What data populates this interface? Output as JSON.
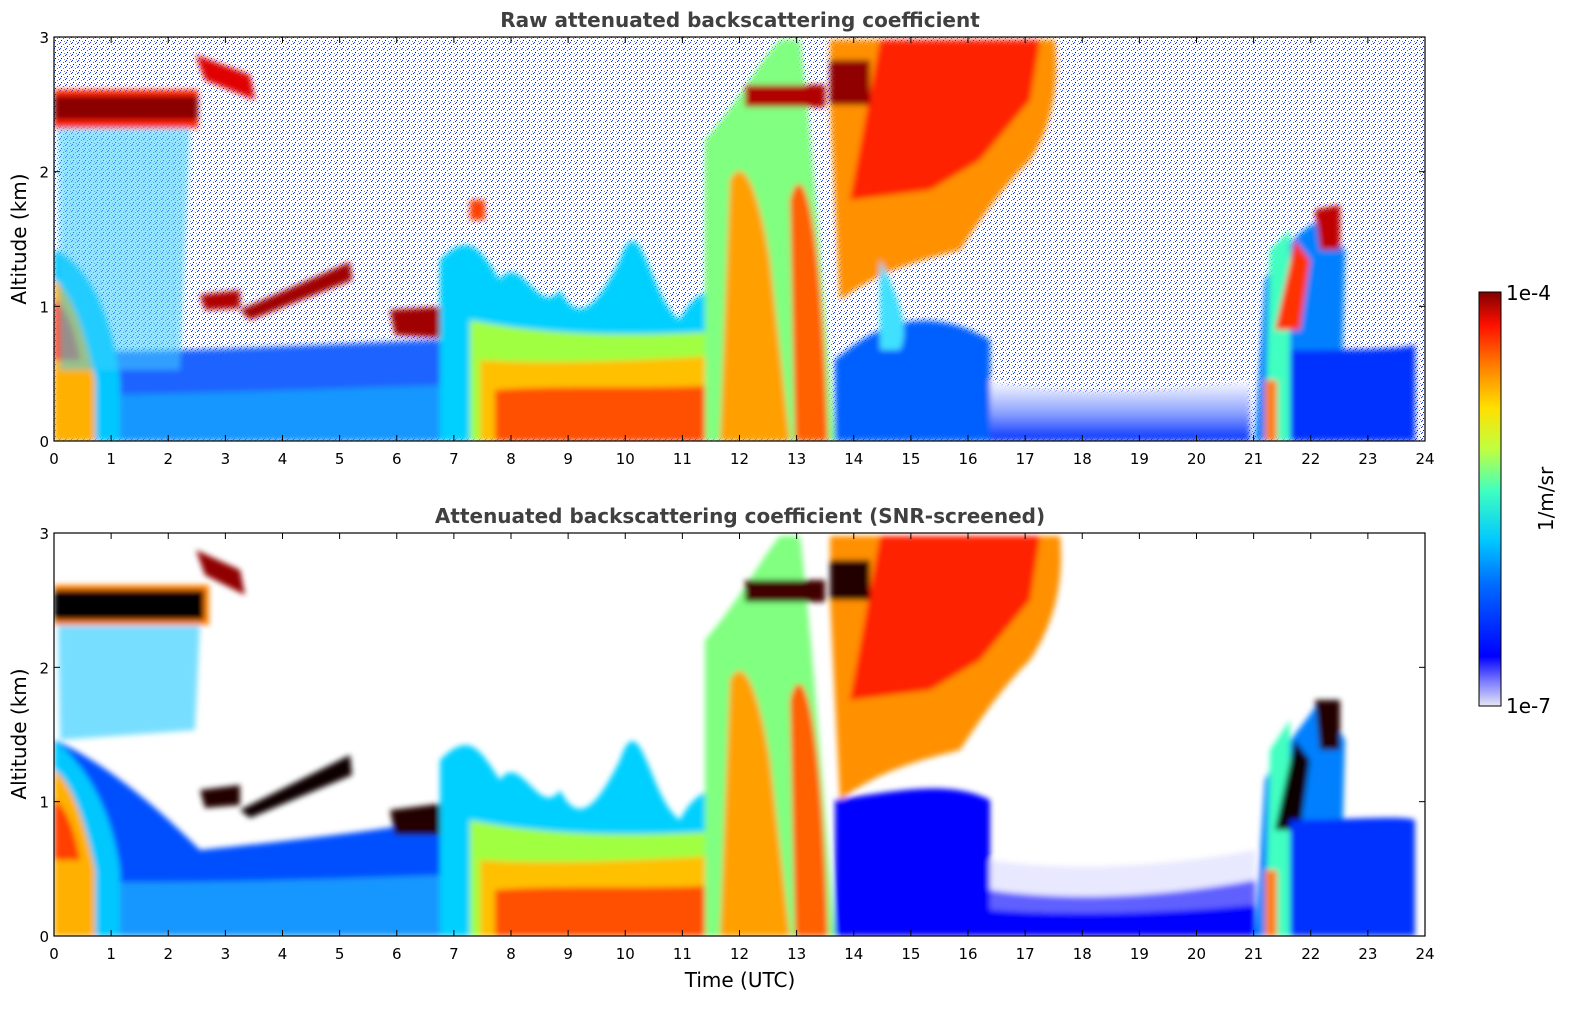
{
  "chart_data": [
    {
      "type": "heatmap",
      "title": "Raw attenuated backscattering coefficient",
      "xlabel": "",
      "ylabel": "Altitude (km)",
      "xlim": [
        0,
        24
      ],
      "ylim": [
        0,
        3
      ],
      "xticks": [
        0,
        1,
        2,
        3,
        4,
        5,
        6,
        7,
        8,
        9,
        10,
        11,
        12,
        13,
        14,
        15,
        16,
        17,
        18,
        19,
        20,
        21,
        22,
        23,
        24
      ],
      "yticks": [
        0,
        1,
        2,
        3
      ],
      "variable": "attenuated backscattering coefficient",
      "screened": false
    },
    {
      "type": "heatmap",
      "title": "Attenuated backscattering coefficient (SNR-screened)",
      "xlabel": "Time (UTC)",
      "ylabel": "Altitude (km)",
      "xlim": [
        0,
        24
      ],
      "ylim": [
        0,
        3
      ],
      "xticks": [
        0,
        1,
        2,
        3,
        4,
        5,
        6,
        7,
        8,
        9,
        10,
        11,
        12,
        13,
        14,
        15,
        16,
        17,
        18,
        19,
        20,
        21,
        22,
        23,
        24
      ],
      "yticks": [
        0,
        1,
        2,
        3
      ],
      "variable": "attenuated backscattering coefficient",
      "screened": true
    }
  ],
  "colorbar": {
    "max_label": "1e-4",
    "min_label": "1e-7",
    "unit_label": "1/m/sr",
    "colormap": "jet",
    "scale": "log"
  },
  "colors": {
    "title": "#404040",
    "axis": "#000000",
    "screened_background": "#ffffff"
  }
}
